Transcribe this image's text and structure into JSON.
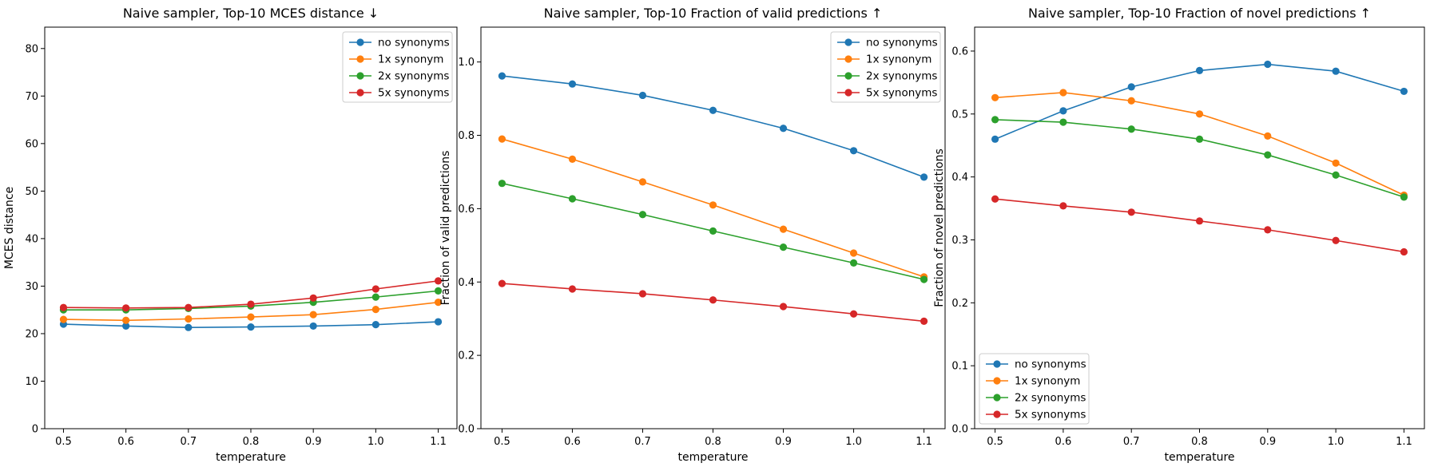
{
  "chart_data": [
    {
      "type": "line",
      "title": "Naive sampler, Top-10 MCES distance ↓",
      "xlabel": "temperature",
      "ylabel": "MCES distance",
      "x": [
        0.5,
        0.6,
        0.7,
        0.8,
        0.9,
        1.0,
        1.1
      ],
      "xticks": [
        "0.5",
        "0.6",
        "0.7",
        "0.8",
        "0.9",
        "1.0",
        "1.1"
      ],
      "xlim": [
        0.47,
        1.13
      ],
      "ylim": [
        0,
        84.5
      ],
      "yticks": [
        "0",
        "10",
        "20",
        "30",
        "40",
        "50",
        "60",
        "70",
        "80"
      ],
      "ytick_values": [
        0,
        10,
        20,
        30,
        40,
        50,
        60,
        70,
        80
      ],
      "legend_loc": "upper-right",
      "series": [
        {
          "name": "no synonyms",
          "color": "#1f77b4",
          "values": [
            22.0,
            21.6,
            21.3,
            21.4,
            21.6,
            21.9,
            22.5
          ]
        },
        {
          "name": "1x synonym",
          "color": "#ff7f0e",
          "values": [
            23.0,
            22.8,
            23.1,
            23.5,
            24.0,
            25.1,
            26.6
          ]
        },
        {
          "name": "2x synonyms",
          "color": "#2ca02c",
          "values": [
            25.0,
            25.0,
            25.3,
            25.8,
            26.6,
            27.7,
            29.0
          ]
        },
        {
          "name": "5x synonyms",
          "color": "#d62728",
          "values": [
            25.5,
            25.4,
            25.5,
            26.2,
            27.5,
            29.4,
            31.1
          ]
        }
      ]
    },
    {
      "type": "line",
      "title": "Naive sampler, Top-10 Fraction of valid predictions ↑",
      "xlabel": "temperature",
      "ylabel": "Fraction of valid predictions",
      "x": [
        0.5,
        0.6,
        0.7,
        0.8,
        0.9,
        1.0,
        1.1
      ],
      "xticks": [
        "0.5",
        "0.6",
        "0.7",
        "0.8",
        "0.9",
        "1.0",
        "1.1"
      ],
      "xlim": [
        0.47,
        1.13
      ],
      "ylim": [
        0,
        1.095
      ],
      "yticks": [
        "0.0",
        "0.2",
        "0.4",
        "0.6",
        "0.8",
        "1.0"
      ],
      "ytick_values": [
        0,
        0.2,
        0.4,
        0.6,
        0.8,
        1.0
      ],
      "legend_loc": "upper-right",
      "series": [
        {
          "name": "no synonyms",
          "color": "#1f77b4",
          "values": [
            0.962,
            0.94,
            0.909,
            0.868,
            0.819,
            0.758,
            0.686
          ]
        },
        {
          "name": "1x synonym",
          "color": "#ff7f0e",
          "values": [
            0.79,
            0.735,
            0.673,
            0.61,
            0.544,
            0.479,
            0.414
          ]
        },
        {
          "name": "2x synonyms",
          "color": "#2ca02c",
          "values": [
            0.669,
            0.627,
            0.584,
            0.539,
            0.495,
            0.452,
            0.407
          ]
        },
        {
          "name": "5x synonyms",
          "color": "#d62728",
          "values": [
            0.396,
            0.381,
            0.368,
            0.351,
            0.333,
            0.313,
            0.293
          ]
        }
      ]
    },
    {
      "type": "line",
      "title": "Naive sampler, Top-10 Fraction of novel predictions ↑",
      "xlabel": "temperature",
      "ylabel": "Fraction of novel predictions",
      "x": [
        0.5,
        0.6,
        0.7,
        0.8,
        0.9,
        1.0,
        1.1
      ],
      "xticks": [
        "0.5",
        "0.6",
        "0.7",
        "0.8",
        "0.9",
        "1.0",
        "1.1"
      ],
      "xlim": [
        0.47,
        1.13
      ],
      "ylim": [
        0,
        0.638
      ],
      "yticks": [
        "0.0",
        "0.1",
        "0.2",
        "0.3",
        "0.4",
        "0.5",
        "0.6"
      ],
      "ytick_values": [
        0,
        0.1,
        0.2,
        0.3,
        0.4,
        0.5,
        0.6
      ],
      "legend_loc": "lower-left",
      "series": [
        {
          "name": "no synonyms",
          "color": "#1f77b4",
          "values": [
            0.46,
            0.505,
            0.543,
            0.569,
            0.579,
            0.568,
            0.536
          ]
        },
        {
          "name": "1x synonym",
          "color": "#ff7f0e",
          "values": [
            0.526,
            0.534,
            0.521,
            0.5,
            0.465,
            0.422,
            0.371
          ]
        },
        {
          "name": "2x synonyms",
          "color": "#2ca02c",
          "values": [
            0.491,
            0.487,
            0.476,
            0.46,
            0.435,
            0.403,
            0.368
          ]
        },
        {
          "name": "5x synonyms",
          "color": "#d62728",
          "values": [
            0.365,
            0.354,
            0.344,
            0.33,
            0.316,
            0.299,
            0.281
          ]
        }
      ]
    }
  ]
}
